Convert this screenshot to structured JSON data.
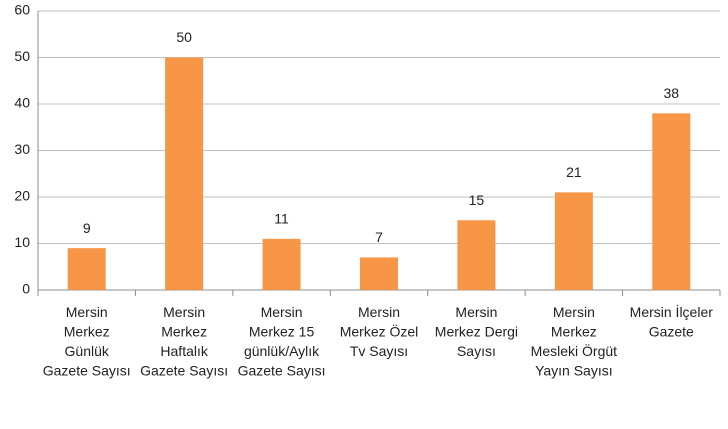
{
  "chart_data": {
    "type": "bar",
    "categories": [
      "Mersin Merkez Günlük Gazete Sayısı",
      "Mersin Merkez Haftalık Gazete Sayısı",
      "Mersin Merkez 15 günlük/Aylık Gazete Sayısı",
      "Mersin Merkez Özel Tv Sayısı",
      "Mersin Merkez Dergi Sayısı",
      "Mersin Merkez Mesleki Örgüt Yayın Sayısı",
      "Mersin İlçeler Gazete"
    ],
    "values": [
      9,
      50,
      11,
      7,
      15,
      21,
      38
    ],
    "color": "#f79646",
    "ylim": [
      0,
      60
    ],
    "yticks": [
      0,
      10,
      20,
      30,
      40,
      50,
      60
    ],
    "grid": true
  }
}
